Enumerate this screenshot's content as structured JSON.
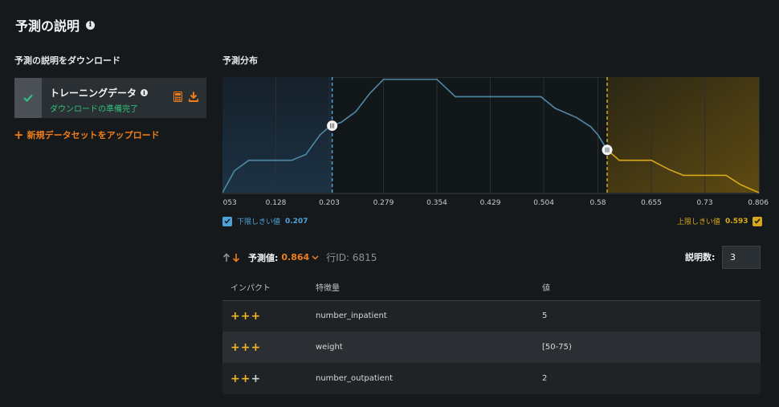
{
  "header": {
    "title": "予測の説明"
  },
  "download": {
    "section_label": "予測の説明をダウンロード",
    "card_title": "トレーニングデータ",
    "card_status": "ダウンロードの準備完了",
    "upload_label": "新規データセットをアップロード"
  },
  "distribution": {
    "section_label": "予測分布"
  },
  "chart_data": {
    "type": "area",
    "title": "",
    "xlabel": "",
    "ylabel": "",
    "x_ticks": [
      "0.053",
      "0.128",
      "0.203",
      "0.279",
      "0.354",
      "0.429",
      "0.504",
      "0.58",
      "0.655",
      "0.73",
      "0.806"
    ],
    "xlim": [
      0.053,
      0.806
    ],
    "ylim": [
      0,
      1
    ],
    "grid": true,
    "series": [
      {
        "x": [
          0.053,
          0.07,
          0.09,
          0.11,
          0.128,
          0.15,
          0.17,
          0.19,
          0.203,
          0.22,
          0.24,
          0.26,
          0.279,
          0.3,
          0.32,
          0.354,
          0.38,
          0.41,
          0.44,
          0.47,
          0.5,
          0.52,
          0.55,
          0.57,
          0.58,
          0.593,
          0.61,
          0.63,
          0.655,
          0.68,
          0.7,
          0.73,
          0.76,
          0.78,
          0.806
        ],
        "y": [
          0.0,
          0.19,
          0.28,
          0.28,
          0.28,
          0.28,
          0.33,
          0.5,
          0.57,
          0.61,
          0.7,
          0.86,
          0.98,
          0.98,
          0.98,
          0.98,
          0.83,
          0.83,
          0.83,
          0.83,
          0.83,
          0.73,
          0.65,
          0.57,
          0.5,
          0.37,
          0.28,
          0.28,
          0.28,
          0.2,
          0.15,
          0.15,
          0.15,
          0.07,
          0.0
        ]
      }
    ],
    "lower_threshold": 0.207,
    "upper_threshold": 0.593,
    "lower_color": "#4ea2da",
    "upper_color": "#d7a81a",
    "line_color": "#4f89a6"
  },
  "thresholds": {
    "lower_label": "下限しきい値",
    "lower_value": "0.207",
    "upper_label": "上限しきい値",
    "upper_value": "0.593"
  },
  "prediction": {
    "label": "予測値:",
    "value": "0.864",
    "row_id": "行ID: 6815",
    "count_label": "説明数:",
    "count_value": "3"
  },
  "table": {
    "headers": [
      "インパクト",
      "特徴量",
      "値"
    ],
    "rows": [
      {
        "impact": [
          "+",
          "+",
          "+"
        ],
        "impact_colors": [
          "#f0b429",
          "#f0b429",
          "#f0b429"
        ],
        "feature": "number_inpatient",
        "value": "5"
      },
      {
        "impact": [
          "+",
          "+",
          "+"
        ],
        "impact_colors": [
          "#f0b429",
          "#f0b429",
          "#f0b429"
        ],
        "feature": "weight",
        "value": "[50-75)"
      },
      {
        "impact": [
          "+",
          "+",
          "+"
        ],
        "impact_colors": [
          "#f0b429",
          "#f0b429",
          "#c9ccd0"
        ],
        "feature": "number_outpatient",
        "value": "2"
      }
    ]
  },
  "colors": {
    "accent_orange": "#ef7d1a",
    "success_green": "#2fc27a",
    "lower_blue": "#4ea2da",
    "upper_gold": "#d7a81a"
  }
}
